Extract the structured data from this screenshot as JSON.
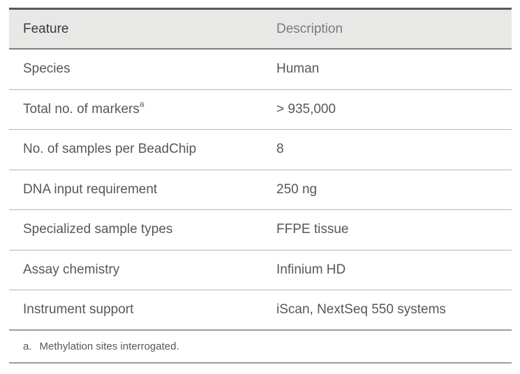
{
  "table": {
    "header": {
      "feature": "Feature",
      "description": "Description"
    },
    "rows": [
      {
        "feature": "Species",
        "description": "Human"
      },
      {
        "feature": "Total no. of markers",
        "feature_sup": "a",
        "description": "> 935,000"
      },
      {
        "feature": "No. of samples per BeadChip",
        "description": "8"
      },
      {
        "feature": "DNA input requirement",
        "description": "250 ng"
      },
      {
        "feature": "Specialized sample types",
        "description": "FFPE tissue"
      },
      {
        "feature": "Assay chemistry",
        "description": "Infinium HD"
      },
      {
        "feature": "Instrument support",
        "description": "iScan, NextSeq 550 systems"
      }
    ],
    "footnote": {
      "marker": "a.",
      "text": "Methylation sites interrogated."
    }
  },
  "colors": {
    "header_background": "#e8e8e7",
    "top_border": "#5a5a5a",
    "header_border": "#7f7f7f",
    "row_separator": "#b6b6b6",
    "outer_border": "#9c9c9c",
    "header_feature_text": "#393a3d",
    "header_description_text": "#797b7e",
    "cell_text": "#55585c"
  }
}
